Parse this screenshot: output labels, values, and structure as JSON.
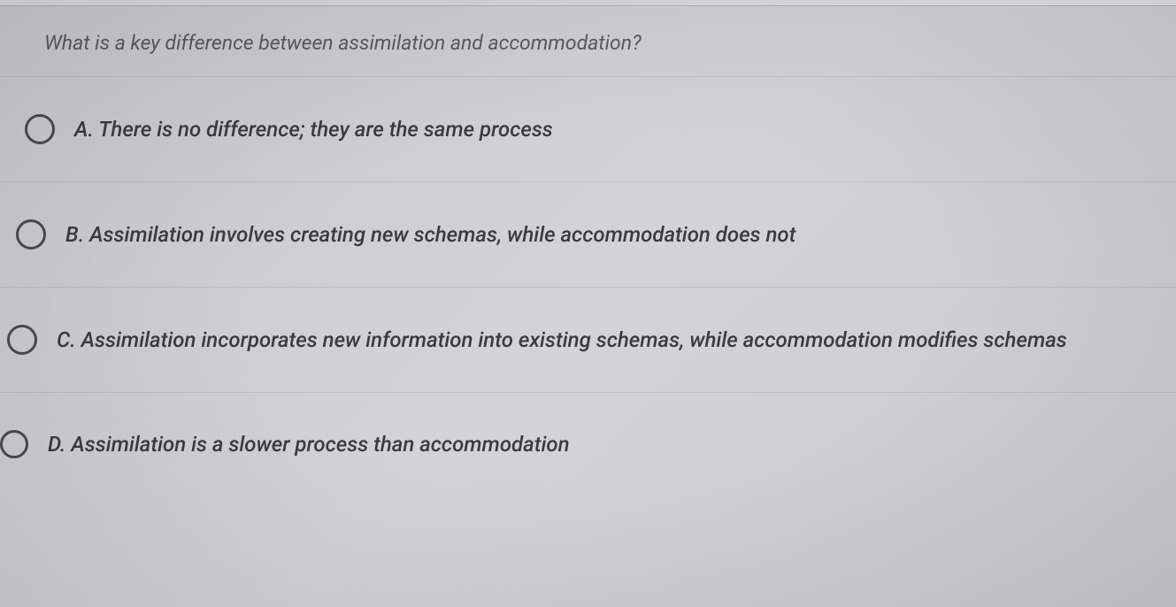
{
  "question": {
    "prompt": "What is a key difference between assimilation and accommodation?"
  },
  "options": [
    {
      "letter": "A",
      "text": "A. There is no difference; they are the same process",
      "selected": false
    },
    {
      "letter": "B",
      "text": "B. Assimilation involves creating new schemas, while accommodation does not",
      "selected": false
    },
    {
      "letter": "C",
      "text": "C. Assimilation incorporates new information into existing schemas, while accommodation modifies schemas",
      "selected": false
    },
    {
      "letter": "D",
      "text": "D. Assimilation is a slower process than accommodation",
      "selected": false
    }
  ],
  "styling": {
    "background_color": "#d0d0d4",
    "text_color": "#3a3a3f",
    "question_text_color": "#5a5a5f",
    "radio_border_color": "#4a4a4f",
    "divider_color": "rgba(150,150,155,0.35)",
    "font_style": "italic",
    "question_font_size": 23,
    "option_font_size": 24,
    "radio_diameter": 34,
    "radio_border_width": 3
  }
}
